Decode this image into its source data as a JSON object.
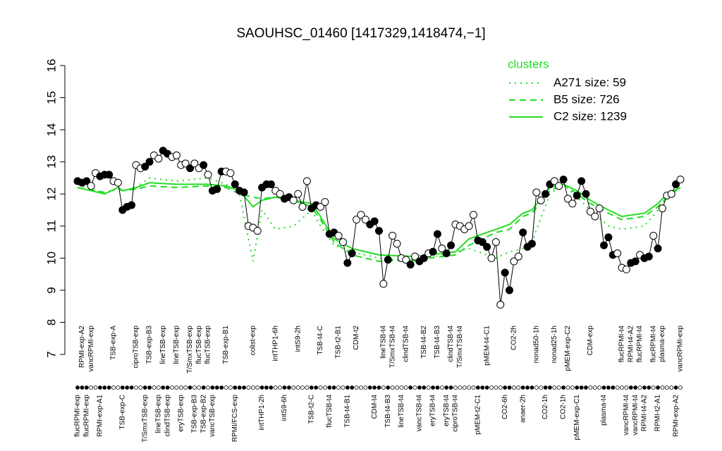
{
  "chart_data": {
    "type": "line",
    "title": "SAOUHSC_01460 [1417329,1418474,−1]",
    "legend_title": "clusters",
    "ylim": [
      7,
      16
    ],
    "yticks": [
      7,
      8,
      9,
      10,
      11,
      12,
      13,
      14,
      15,
      16
    ],
    "line_color": "#000000",
    "point_colors": [
      "#ffffff",
      "#000000"
    ],
    "categories": [
      "flucRPMI-exp",
      "RPMI-exp-A2",
      "flucRPMI-exp",
      "vancRPMI-exp",
      null,
      "RPMI-exp-A1",
      null,
      null,
      "TSB-exp-A",
      null,
      "TSB-exp-C",
      null,
      null,
      "ciproTSB-exp",
      null,
      "T/SmxTSB-exp",
      "TSB-exp-B3",
      null,
      "lineTSB-exp",
      "lineTSB-exp",
      "clindTSB-exp",
      null,
      "lineTSB-exp",
      "eryTSB-exp",
      null,
      "T/SmxTSB-exp",
      "TSB-exp-B3",
      "flucTSB-exp",
      "TSB-exp-B2",
      "flucTSB-exp",
      "vancTSB-exp",
      null,
      null,
      "TSB-exp-B1",
      null,
      "RPMI/FCS-exp",
      null,
      null,
      null,
      "colist-exp",
      null,
      "intTHP1-2h",
      null,
      null,
      "intTHP1-6h",
      null,
      "intS9-6h",
      null,
      null,
      "intS9-2h",
      null,
      null,
      "TSB-t2-C",
      null,
      "TSB-t4-C",
      null,
      "flucTSB-t4",
      null,
      "TSB-t2-B1",
      null,
      "TSB-t4-B1",
      null,
      "CDM-t2",
      null,
      null,
      null,
      "CDM-t4",
      null,
      "lineTSB-t4",
      "TSB-t4-B3",
      "T/SmxTSB-t4",
      null,
      "lineTSB-t4",
      "clindTSB-t4",
      null,
      null,
      "vancTSB-t4",
      "TSB-t4-B2",
      null,
      "eryTSB-t4",
      "TSB-t4-B3",
      null,
      "eryTSB-t4",
      "clindTSB-t4",
      "ciproTSB-t4",
      "T/SmxTSB-t4",
      null,
      null,
      null,
      "pMEM-t2-C1",
      null,
      "pMEM-t4-C1",
      null,
      null,
      null,
      "CO2-6h",
      null,
      "CO2-2h",
      null,
      "anaer-2h",
      null,
      null,
      "nonad50-1h",
      null,
      "CO2-1h",
      null,
      "nonad25-1h",
      null,
      "CO2-1h",
      "pMEM-exp-C2",
      null,
      "pMEM-exp-C1",
      null,
      null,
      "CDM-exp",
      null,
      null,
      "plasma-t4",
      null,
      null,
      null,
      "flucRPMI-t4",
      "vancRPMI-t4",
      "RPMI-t4-A2",
      "vancRPMI-t4",
      "flucRPMI-t4",
      "RPMI-t4-A2",
      null,
      "flucRPMI-t4",
      "RPMI-t2-A1",
      "plasma-exp",
      null,
      null,
      "RPMI-exp-A2",
      "vancRPMI-exp"
    ],
    "values": [
      12.4,
      12.35,
      12.4,
      12.25,
      12.65,
      12.55,
      12.6,
      12.6,
      12.4,
      12.35,
      11.5,
      11.6,
      11.65,
      12.9,
      12.8,
      12.85,
      13.0,
      13.2,
      13.1,
      13.35,
      13.25,
      13.15,
      13.2,
      12.9,
      12.95,
      12.8,
      12.95,
      12.8,
      12.9,
      12.6,
      12.1,
      12.15,
      12.7,
      12.7,
      12.65,
      12.3,
      12.1,
      12.05,
      11.0,
      10.95,
      10.85,
      12.2,
      12.3,
      12.3,
      12.1,
      12.0,
      11.85,
      11.9,
      11.8,
      12.0,
      11.6,
      12.4,
      11.55,
      11.65,
      11.6,
      11.75,
      10.75,
      10.8,
      10.7,
      10.5,
      9.85,
      10.15,
      11.2,
      11.35,
      11.2,
      11.05,
      11.15,
      10.85,
      9.2,
      9.95,
      10.7,
      10.45,
      10.0,
      9.95,
      9.8,
      10.05,
      9.9,
      10.0,
      10.15,
      10.2,
      10.75,
      10.3,
      10.15,
      10.4,
      11.05,
      11.0,
      10.9,
      11.0,
      11.35,
      10.55,
      10.5,
      10.35,
      10.0,
      10.5,
      8.55,
      9.55,
      9.0,
      9.9,
      10.05,
      10.8,
      10.35,
      10.45,
      12.05,
      11.8,
      12.0,
      12.3,
      12.4,
      12.25,
      12.45,
      11.85,
      11.7,
      11.95,
      12.4,
      12.0,
      11.45,
      11.3,
      11.55,
      10.4,
      10.65,
      10.1,
      10.15,
      9.7,
      9.65,
      9.85,
      9.9,
      10.1,
      10.0,
      10.05,
      10.7,
      10.3,
      11.55,
      11.95,
      12.0,
      12.3,
      12.45
    ],
    "filled": [
      1,
      1,
      1,
      0,
      0,
      1,
      1,
      1,
      0,
      0,
      1,
      1,
      1,
      0,
      0,
      1,
      1,
      0,
      0,
      1,
      1,
      0,
      0,
      0,
      0,
      1,
      0,
      0,
      1,
      0,
      1,
      1,
      1,
      0,
      0,
      1,
      1,
      1,
      0,
      0,
      0,
      1,
      1,
      1,
      0,
      0,
      1,
      1,
      0,
      0,
      0,
      0,
      1,
      1,
      0,
      0,
      1,
      1,
      0,
      0,
      1,
      1,
      0,
      0,
      0,
      1,
      1,
      1,
      0,
      1,
      0,
      0,
      0,
      0,
      1,
      0,
      1,
      1,
      0,
      1,
      1,
      0,
      1,
      1,
      0,
      0,
      0,
      0,
      0,
      1,
      1,
      1,
      0,
      0,
      0,
      1,
      1,
      0,
      0,
      1,
      1,
      1,
      0,
      0,
      1,
      1,
      0,
      0,
      1,
      0,
      0,
      1,
      1,
      1,
      0,
      0,
      0,
      1,
      1,
      1,
      0,
      0,
      0,
      1,
      1,
      0,
      1,
      1,
      0,
      1,
      0,
      0,
      0,
      1,
      0
    ],
    "series": [
      {
        "name": "A271 size: 59",
        "color": "#22dd22",
        "dash": "dotted",
        "x": [
          0,
          6,
          9,
          10,
          13,
          16,
          22,
          29,
          33,
          36,
          39,
          41,
          44,
          48,
          52,
          54,
          57,
          61,
          67,
          75,
          84,
          87,
          93,
          96,
          99,
          101,
          105,
          108,
          111,
          114,
          118,
          121,
          126,
          129,
          131,
          134
        ],
        "values": [
          12.3,
          12.0,
          12.2,
          12.1,
          12.2,
          12.5,
          12.4,
          12.5,
          12.3,
          12.0,
          9.9,
          11.5,
          10.9,
          11.0,
          11.5,
          11.0,
          10.4,
          10.2,
          10.0,
          9.9,
          10.2,
          10.3,
          10.0,
          10.2,
          10.3,
          10.5,
          12.0,
          12.3,
          11.9,
          11.5,
          11.0,
          10.9,
          11.0,
          11.5,
          11.9,
          12.2
        ]
      },
      {
        "name": "B5 size: 726",
        "color": "#22dd22",
        "dash": "dashed",
        "x": [
          0,
          6,
          9,
          10,
          13,
          16,
          22,
          29,
          33,
          36,
          39,
          41,
          44,
          48,
          52,
          54,
          57,
          61,
          67,
          75,
          84,
          87,
          93,
          96,
          99,
          101,
          105,
          108,
          111,
          114,
          118,
          121,
          126,
          129,
          131,
          134
        ],
        "values": [
          12.2,
          12.05,
          12.15,
          12.1,
          12.15,
          12.25,
          12.2,
          12.25,
          12.2,
          12.0,
          11.9,
          11.85,
          11.9,
          11.8,
          11.6,
          11.2,
          10.5,
          10.1,
          9.9,
          9.95,
          10.1,
          10.4,
          10.8,
          10.9,
          11.3,
          11.4,
          12.1,
          12.3,
          12.0,
          11.7,
          11.4,
          11.2,
          11.3,
          11.6,
          11.9,
          12.2
        ]
      },
      {
        "name": "C2 size: 1239",
        "color": "#22dd22",
        "dash": "solid",
        "x": [
          0,
          6,
          9,
          10,
          13,
          16,
          22,
          29,
          33,
          36,
          39,
          41,
          44,
          48,
          52,
          54,
          57,
          61,
          67,
          75,
          84,
          87,
          93,
          96,
          99,
          101,
          105,
          108,
          111,
          114,
          118,
          121,
          126,
          129,
          131,
          134
        ],
        "values": [
          12.2,
          12.0,
          12.2,
          12.1,
          12.2,
          12.35,
          12.3,
          12.3,
          12.25,
          12.1,
          11.6,
          11.8,
          11.9,
          11.8,
          11.7,
          11.3,
          10.6,
          10.3,
          10.1,
          10.05,
          10.2,
          10.6,
          10.9,
          11.05,
          11.4,
          11.5,
          12.2,
          12.3,
          12.1,
          11.8,
          11.5,
          11.3,
          11.4,
          11.7,
          12.0,
          12.2
        ]
      }
    ]
  }
}
